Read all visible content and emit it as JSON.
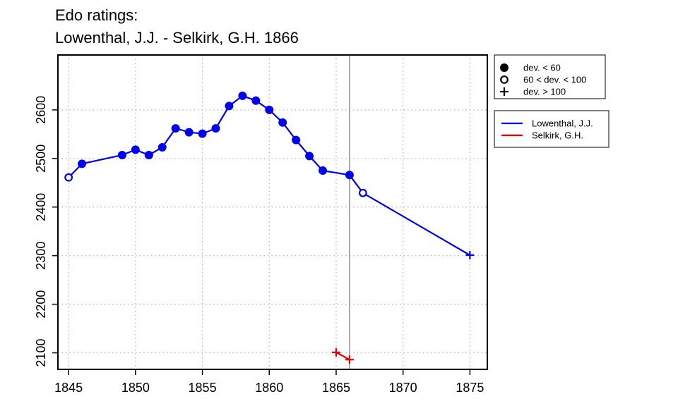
{
  "chart_data": {
    "type": "line",
    "title": "Edo ratings:",
    "subtitle": "Lowenthal, J.J. - Selkirk, G.H. 1866",
    "xlabel": "",
    "ylabel": "",
    "xlim": [
      1844.2,
      1876.3
    ],
    "ylim": [
      2066,
      2713
    ],
    "x_ticks": [
      1845,
      1850,
      1855,
      1860,
      1865,
      1870,
      1875
    ],
    "y_ticks": [
      2100,
      2200,
      2300,
      2400,
      2500,
      2600
    ],
    "grid": true,
    "reference_line_x": 1866,
    "marker_legend": [
      {
        "symbol": "filled",
        "label": "dev. < 60"
      },
      {
        "symbol": "open",
        "label": "60 < dev. < 100"
      },
      {
        "symbol": "plus",
        "label": "dev. > 100"
      }
    ],
    "series": [
      {
        "name": "Lowenthal, J.J.",
        "color": "#0000ee",
        "points": [
          {
            "x": 1845,
            "y": 2461,
            "m": "open"
          },
          {
            "x": 1846,
            "y": 2489,
            "m": "filled"
          },
          {
            "x": 1849,
            "y": 2507,
            "m": "filled"
          },
          {
            "x": 1850,
            "y": 2518,
            "m": "filled"
          },
          {
            "x": 1851,
            "y": 2507,
            "m": "filled"
          },
          {
            "x": 1852,
            "y": 2523,
            "m": "filled"
          },
          {
            "x": 1853,
            "y": 2562,
            "m": "filled"
          },
          {
            "x": 1854,
            "y": 2554,
            "m": "filled"
          },
          {
            "x": 1855,
            "y": 2551,
            "m": "filled"
          },
          {
            "x": 1856,
            "y": 2562,
            "m": "filled"
          },
          {
            "x": 1857,
            "y": 2608,
            "m": "filled"
          },
          {
            "x": 1858,
            "y": 2629,
            "m": "filled"
          },
          {
            "x": 1859,
            "y": 2619,
            "m": "filled"
          },
          {
            "x": 1860,
            "y": 2600,
            "m": "filled"
          },
          {
            "x": 1861,
            "y": 2574,
            "m": "filled"
          },
          {
            "x": 1862,
            "y": 2538,
            "m": "filled"
          },
          {
            "x": 1863,
            "y": 2505,
            "m": "filled"
          },
          {
            "x": 1864,
            "y": 2475,
            "m": "filled"
          },
          {
            "x": 1866,
            "y": 2466,
            "m": "filled"
          },
          {
            "x": 1867,
            "y": 2429,
            "m": "open"
          },
          {
            "x": 1875,
            "y": 2301,
            "m": "plus"
          }
        ]
      },
      {
        "name": "Selkirk, G.H.",
        "color": "#ee0000",
        "points": [
          {
            "x": 1865,
            "y": 2101,
            "m": "plus"
          },
          {
            "x": 1866,
            "y": 2086,
            "m": "plus"
          }
        ]
      }
    ]
  }
}
